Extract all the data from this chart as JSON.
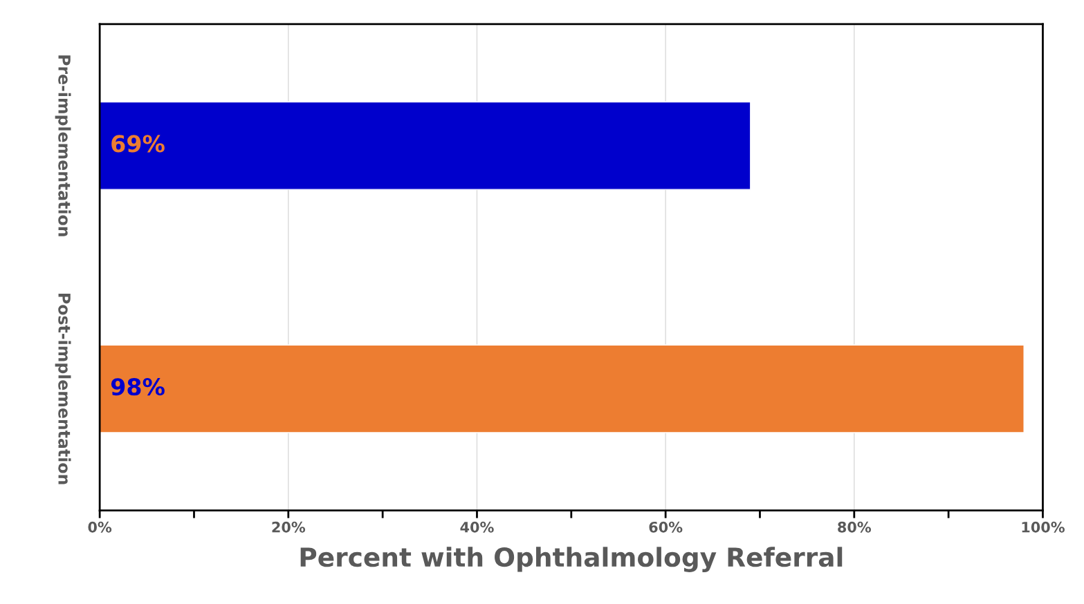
{
  "chart_data": {
    "type": "bar",
    "orientation": "horizontal",
    "xlabel": "Percent with Ophthalmology Referral",
    "categories": [
      "Pre-implementation",
      "Post-implementation"
    ],
    "values": [
      69,
      98
    ],
    "colors": [
      "#0000cc",
      "#ed7d31"
    ],
    "value_labels": [
      "69%",
      "98%"
    ],
    "xlim": [
      0,
      100
    ],
    "xticks": [
      {
        "value": 0,
        "label": "0%"
      },
      {
        "value": 10,
        "label": null
      },
      {
        "value": 20,
        "label": "20%"
      },
      {
        "value": 30,
        "label": null
      },
      {
        "value": 40,
        "label": "40%"
      },
      {
        "value": 50,
        "label": null
      },
      {
        "value": 60,
        "label": "60%"
      },
      {
        "value": 70,
        "label": null
      },
      {
        "value": 80,
        "label": "80%"
      },
      {
        "value": 90,
        "label": null
      },
      {
        "value": 100,
        "label": "100%"
      }
    ],
    "grid": "x"
  }
}
